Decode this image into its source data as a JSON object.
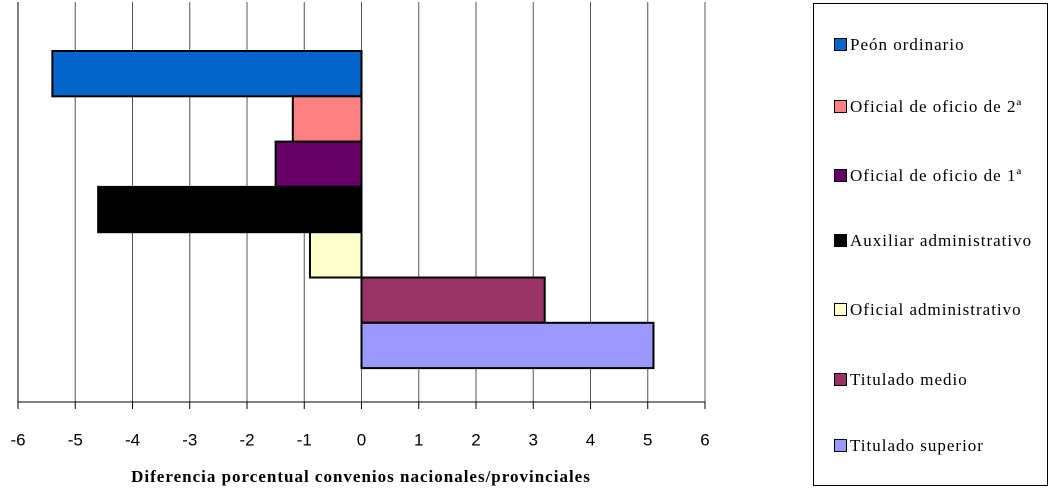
{
  "chart_data": {
    "type": "hbar",
    "x_label": "Diferencia porcentual convenios nacionales/provinciales",
    "categories": [
      "Peón ordinario",
      "Oficial de oficio de 2ª",
      "Oficial de oficio de 1ª",
      "Auxiliar administrativo",
      "Oficial administrativo",
      "Titulado medio",
      "Titulado superior"
    ],
    "values": [
      -5.4,
      -1.2,
      -1.5,
      -4.6,
      -0.9,
      3.2,
      5.1
    ],
    "colors": [
      "#0066cc",
      "#ff8080",
      "#660066",
      "#000000",
      "#ffffcc",
      "#993366",
      "#9999ff"
    ],
    "xlim": [
      -6,
      6
    ],
    "xticks": [
      -6,
      -5,
      -4,
      -3,
      -2,
      -1,
      0,
      1,
      2,
      3,
      4,
      5,
      6
    ],
    "grid": true
  }
}
